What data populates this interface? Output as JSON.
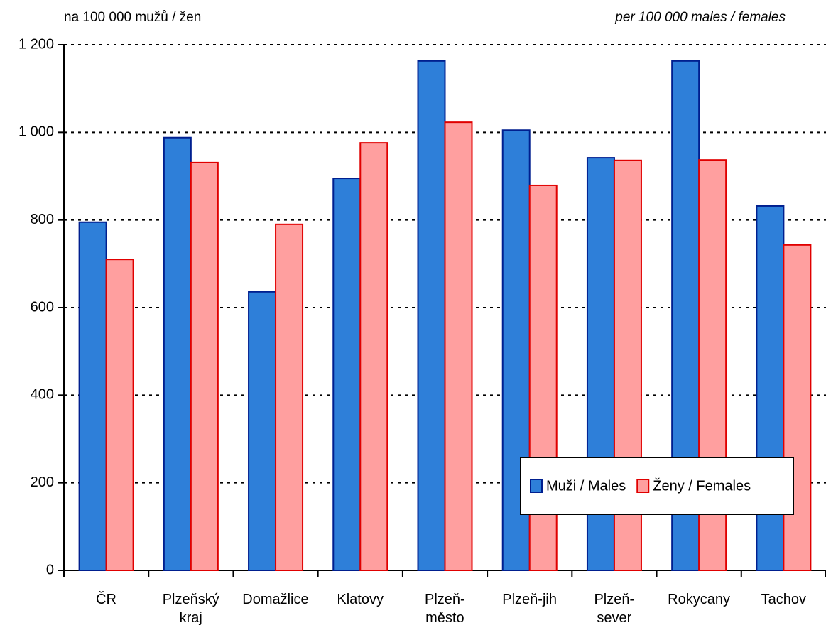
{
  "chart_data": {
    "type": "bar",
    "ylabel": "na 100 000 mužů / žen",
    "ylabel_en": "per 100 000 males / females",
    "categories": [
      "ČR",
      "Plzeňský\nkraj",
      "Domažlice",
      "Klatovy",
      "Plzeň-\nměsto",
      "Plzeň-jih",
      "Plzeň-\nsever",
      "Rokycany",
      "Tachov"
    ],
    "series": [
      {
        "name": "Muži / Males",
        "color": "#2e7fd9",
        "values": [
          795,
          988,
          636,
          895,
          1163,
          1005,
          942,
          1163,
          832
        ]
      },
      {
        "name": "Ženy / Females",
        "color": "#ff9f9f",
        "values": [
          710,
          931,
          790,
          976,
          1023,
          879,
          936,
          937,
          743
        ]
      }
    ],
    "ylim": [
      0,
      1200
    ],
    "yticks": [
      0,
      200,
      400,
      600,
      800,
      {
        "value": 1000,
        "label": "1 000"
      },
      {
        "value": 1200,
        "label": "1 200"
      }
    ],
    "grid": true,
    "legend": "lower right"
  }
}
